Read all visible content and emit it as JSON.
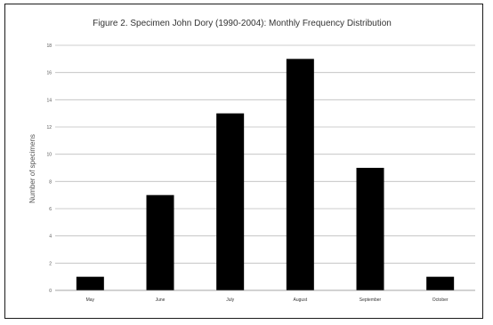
{
  "chart_data": {
    "type": "bar",
    "title": "Figure 2. Specimen John Dory (1990-2004): Monthly Frequency Distribution",
    "xlabel": "",
    "ylabel": "Number of specimens",
    "categories": [
      "May",
      "June",
      "July",
      "August",
      "September",
      "October"
    ],
    "values": [
      1,
      7,
      13,
      17,
      9,
      1
    ],
    "ylim": [
      0,
      18
    ],
    "yticks": [
      0,
      2,
      4,
      6,
      8,
      10,
      12,
      14,
      16,
      18
    ],
    "grid": true,
    "legend": "none",
    "bar_color": "#000000",
    "grid_color": "#bdbdbd"
  }
}
